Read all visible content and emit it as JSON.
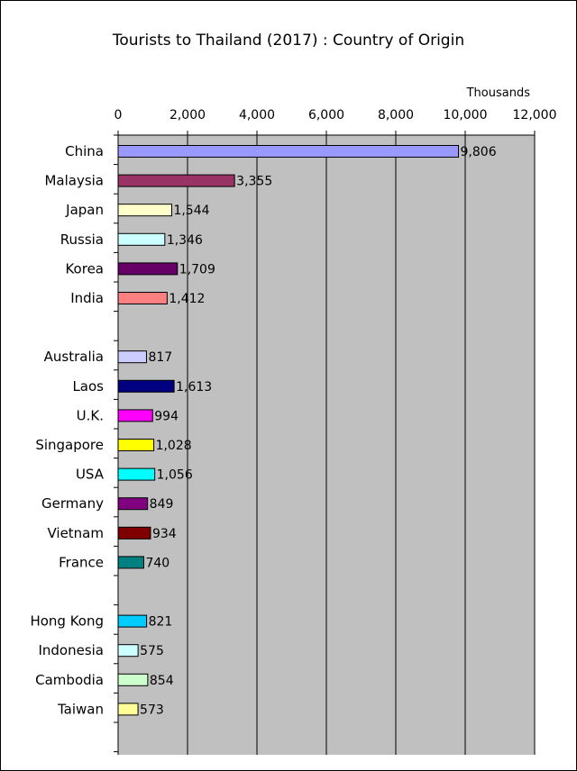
{
  "chart_data": {
    "type": "bar",
    "orientation": "horizontal",
    "title": "Tourists to Thailand (2017) : Country of Origin",
    "unit_label": "Thousands",
    "xlim": [
      0,
      12000
    ],
    "ticks": [
      "0",
      "2,000",
      "4,000",
      "6,000",
      "8,000",
      "10,000",
      "12,000"
    ],
    "tick_values": [
      0,
      2000,
      4000,
      6000,
      8000,
      10000,
      12000
    ],
    "grid": true,
    "plot_background": "#c0c0c0",
    "bars": [
      {
        "category": "China",
        "value": 9806,
        "label": "9,806",
        "color": "#9999ff",
        "row": 0
      },
      {
        "category": "Malaysia",
        "value": 3355,
        "label": "3,355",
        "color": "#993366",
        "row": 1
      },
      {
        "category": "Japan",
        "value": 1544,
        "label": "1,544",
        "color": "#ffffcc",
        "row": 2
      },
      {
        "category": "Russia",
        "value": 1346,
        "label": "1,346",
        "color": "#ccffff",
        "row": 3
      },
      {
        "category": "Korea",
        "value": 1709,
        "label": "1,709",
        "color": "#660066",
        "row": 4
      },
      {
        "category": "India",
        "value": 1412,
        "label": "1,412",
        "color": "#ff8080",
        "row": 5
      },
      {
        "category": "Australia",
        "value": 817,
        "label": "817",
        "color": "#ccccff",
        "row": 7
      },
      {
        "category": "Laos",
        "value": 1613,
        "label": "1,613",
        "color": "#000080",
        "row": 8
      },
      {
        "category": "U.K.",
        "value": 994,
        "label": "994",
        "color": "#ff00ff",
        "row": 9
      },
      {
        "category": "Singapore",
        "value": 1028,
        "label": "1,028",
        "color": "#ffff00",
        "row": 10
      },
      {
        "category": "USA",
        "value": 1056,
        "label": "1,056",
        "color": "#00ffff",
        "row": 11
      },
      {
        "category": "Germany",
        "value": 849,
        "label": "849",
        "color": "#800080",
        "row": 12
      },
      {
        "category": "Vietnam",
        "value": 934,
        "label": "934",
        "color": "#800000",
        "row": 13
      },
      {
        "category": "France",
        "value": 740,
        "label": "740",
        "color": "#008080",
        "row": 14
      },
      {
        "category": "Hong Kong",
        "value": 821,
        "label": "821",
        "color": "#00ccff",
        "row": 16
      },
      {
        "category": "Indonesia",
        "value": 575,
        "label": "575",
        "color": "#ccffff",
        "row": 17
      },
      {
        "category": "Cambodia",
        "value": 854,
        "label": "854",
        "color": "#ccffcc",
        "row": 18
      },
      {
        "category": "Taiwan",
        "value": 573,
        "label": "573",
        "color": "#ffff99",
        "row": 19
      }
    ],
    "total_rows": 21
  }
}
